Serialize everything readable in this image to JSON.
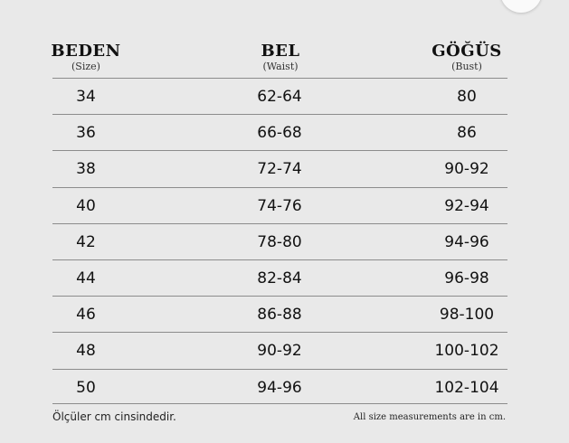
{
  "headers": [
    {
      "title": "BEDEN",
      "subtitle": "(Size)"
    },
    {
      "title": "BEL",
      "subtitle": "(Waist)"
    },
    {
      "title": "GÖĞÜS",
      "subtitle": "(Bust)"
    }
  ],
  "rows": [
    {
      "size": "34",
      "waist": "62-64",
      "bust": "80"
    },
    {
      "size": "36",
      "waist": "66-68",
      "bust": "86"
    },
    {
      "size": "38",
      "waist": "72-74",
      "bust": "90-92"
    },
    {
      "size": "40",
      "waist": "74-76",
      "bust": "92-94"
    },
    {
      "size": "42",
      "waist": "78-80",
      "bust": "94-96"
    },
    {
      "size": "44",
      "waist": "82-84",
      "bust": "96-98"
    },
    {
      "size": "46",
      "waist": "86-88",
      "bust": "98-100"
    },
    {
      "size": "48",
      "waist": "90-92",
      "bust": "100-102"
    },
    {
      "size": "50",
      "waist": "94-96",
      "bust": "102-104"
    }
  ],
  "footer": {
    "left": "Ölçüler cm cinsindedir.",
    "right": "All size measurements are in cm."
  }
}
